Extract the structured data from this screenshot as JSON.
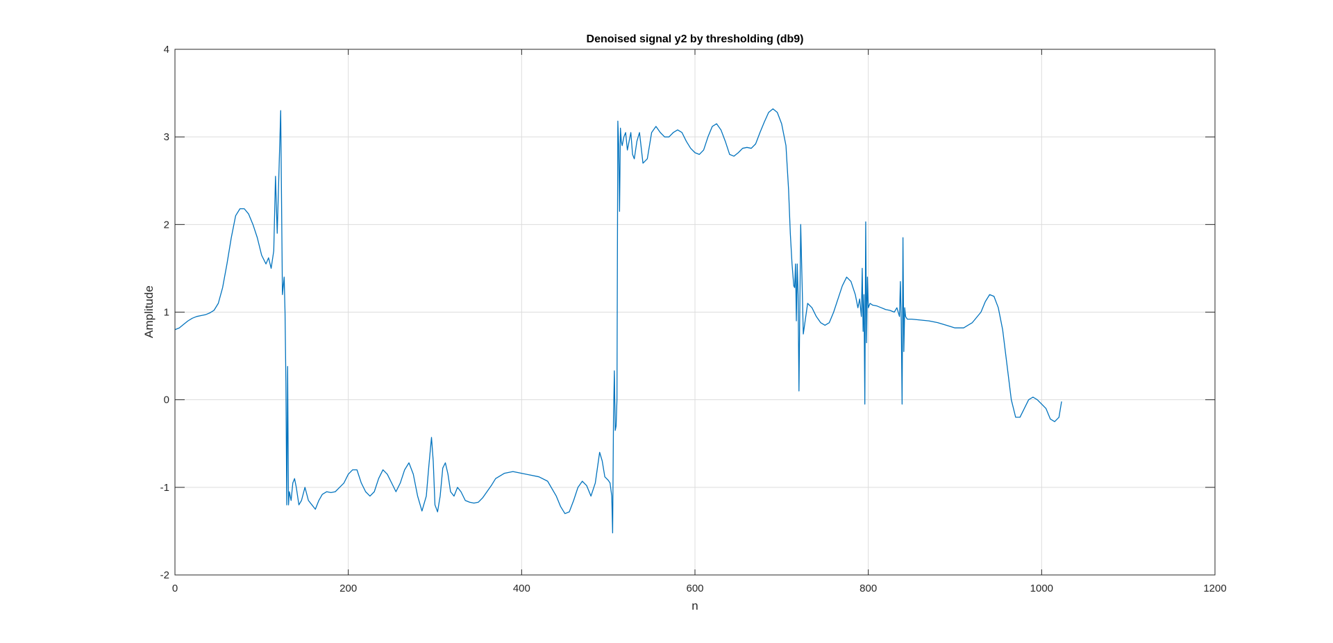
{
  "chart_data": {
    "type": "line",
    "title": "Denoised signal y2 by thresholding (db9)",
    "xlabel": "n",
    "ylabel": "Amplitude",
    "xlim": [
      0,
      1200
    ],
    "ylim": [
      -2,
      4
    ],
    "xticks": [
      0,
      200,
      400,
      600,
      800,
      1000,
      1200
    ],
    "yticks": [
      -2,
      -1,
      0,
      1,
      2,
      3,
      4
    ],
    "xtick_labels": [
      "0",
      "200",
      "400",
      "600",
      "800",
      "1000",
      "1200"
    ],
    "ytick_labels": [
      "-2",
      "-1",
      "0",
      "1",
      "2",
      "3",
      "4"
    ],
    "grid": true,
    "colors": {
      "line": "#0072BD",
      "grid": "#dcdcdc",
      "axes": "#262626"
    },
    "series": [
      {
        "x": [
          0,
          5,
          10,
          15,
          20,
          25,
          30,
          35,
          40,
          45,
          50,
          55,
          60,
          65,
          70,
          75,
          80,
          85,
          90,
          95,
          100,
          105,
          108,
          111,
          114,
          116,
          118,
          120,
          122,
          124,
          126,
          127,
          128,
          129,
          130,
          131,
          132,
          134,
          136,
          138,
          140,
          143,
          146,
          150,
          154,
          158,
          162,
          166,
          170,
          175,
          180,
          185,
          190,
          195,
          200,
          205,
          210,
          215,
          220,
          225,
          230,
          235,
          240,
          245,
          250,
          255,
          260,
          265,
          270,
          275,
          280,
          285,
          290,
          293,
          296,
          298,
          300,
          303,
          306,
          309,
          312,
          315,
          318,
          322,
          326,
          330,
          335,
          340,
          345,
          350,
          355,
          360,
          365,
          370,
          380,
          390,
          400,
          410,
          420,
          430,
          440,
          445,
          450,
          455,
          460,
          465,
          470,
          475,
          480,
          485,
          490,
          493,
          496,
          500,
          502,
          504,
          505,
          506,
          507,
          508,
          509,
          510,
          511,
          512,
          513,
          514,
          515,
          516,
          518,
          520,
          522,
          524,
          526,
          528,
          530,
          533,
          536,
          540,
          545,
          550,
          555,
          560,
          565,
          570,
          575,
          580,
          585,
          590,
          595,
          600,
          605,
          610,
          615,
          620,
          625,
          630,
          635,
          640,
          645,
          650,
          655,
          660,
          665,
          670,
          675,
          680,
          685,
          690,
          695,
          700,
          705,
          708,
          710,
          712,
          714,
          715,
          716,
          717,
          718,
          719,
          720,
          722,
          725,
          730,
          735,
          740,
          745,
          750,
          755,
          760,
          765,
          770,
          775,
          780,
          785,
          788,
          790,
          792,
          793,
          794,
          795,
          796,
          797,
          798,
          799,
          800,
          802,
          805,
          810,
          815,
          820,
          825,
          830,
          833,
          836,
          837,
          838,
          839,
          840,
          841,
          842,
          843,
          845,
          850,
          860,
          870,
          880,
          890,
          900,
          910,
          920,
          930,
          935,
          940,
          945,
          950,
          955,
          960,
          965,
          970,
          975,
          980,
          985,
          990,
          995,
          1000,
          1005,
          1010,
          1015,
          1020,
          1023
        ],
        "y": [
          0.8,
          0.82,
          0.86,
          0.9,
          0.93,
          0.95,
          0.96,
          0.97,
          0.99,
          1.02,
          1.1,
          1.28,
          1.55,
          1.85,
          2.1,
          2.18,
          2.18,
          2.12,
          2.0,
          1.85,
          1.65,
          1.55,
          1.62,
          1.5,
          1.7,
          2.55,
          1.9,
          2.6,
          3.3,
          1.2,
          1.4,
          1.0,
          0.2,
          -1.2,
          0.38,
          -1.2,
          -1.05,
          -1.15,
          -0.95,
          -0.9,
          -1.0,
          -1.2,
          -1.15,
          -1.0,
          -1.15,
          -1.2,
          -1.25,
          -1.15,
          -1.08,
          -1.05,
          -1.06,
          -1.05,
          -1.0,
          -0.95,
          -0.85,
          -0.8,
          -0.8,
          -0.95,
          -1.05,
          -1.1,
          -1.05,
          -0.9,
          -0.8,
          -0.85,
          -0.95,
          -1.05,
          -0.95,
          -0.8,
          -0.72,
          -0.85,
          -1.1,
          -1.27,
          -1.1,
          -0.75,
          -0.43,
          -0.7,
          -1.2,
          -1.28,
          -1.1,
          -0.78,
          -0.72,
          -0.85,
          -1.05,
          -1.1,
          -1.0,
          -1.05,
          -1.15,
          -1.17,
          -1.18,
          -1.17,
          -1.12,
          -1.05,
          -0.98,
          -0.9,
          -0.84,
          -0.82,
          -0.84,
          -0.86,
          -0.88,
          -0.93,
          -1.1,
          -1.22,
          -1.3,
          -1.28,
          -1.15,
          -1.0,
          -0.93,
          -0.98,
          -1.1,
          -0.95,
          -0.6,
          -0.7,
          -0.88,
          -0.92,
          -0.95,
          -1.1,
          -1.52,
          -0.2,
          0.33,
          -0.35,
          -0.3,
          0.0,
          3.18,
          2.9,
          2.15,
          3.1,
          2.95,
          2.9,
          3.0,
          3.05,
          2.85,
          2.95,
          3.05,
          2.8,
          2.75,
          2.95,
          3.05,
          2.7,
          2.75,
          3.05,
          3.12,
          3.05,
          3.0,
          3.0,
          3.05,
          3.08,
          3.05,
          2.95,
          2.87,
          2.82,
          2.8,
          2.85,
          3.0,
          3.12,
          3.15,
          3.08,
          2.95,
          2.8,
          2.78,
          2.82,
          2.87,
          2.88,
          2.87,
          2.92,
          3.05,
          3.17,
          3.28,
          3.32,
          3.28,
          3.15,
          2.9,
          2.4,
          1.9,
          1.55,
          1.3,
          1.28,
          1.55,
          0.9,
          1.55,
          1.2,
          0.1,
          2.0,
          0.75,
          1.1,
          1.05,
          0.95,
          0.88,
          0.85,
          0.88,
          1.0,
          1.15,
          1.3,
          1.4,
          1.35,
          1.2,
          1.05,
          1.15,
          0.95,
          1.5,
          0.78,
          1.2,
          -0.05,
          2.03,
          0.65,
          1.4,
          1.05,
          1.1,
          1.08,
          1.07,
          1.05,
          1.03,
          1.02,
          1.0,
          1.05,
          0.95,
          1.35,
          0.9,
          -0.05,
          1.85,
          0.55,
          1.05,
          0.95,
          0.92,
          0.92,
          0.91,
          0.9,
          0.88,
          0.85,
          0.82,
          0.82,
          0.88,
          1.0,
          1.12,
          1.2,
          1.18,
          1.05,
          0.8,
          0.4,
          0.0,
          -0.2,
          -0.2,
          -0.1,
          0.0,
          0.03,
          0.0,
          -0.05,
          -0.1,
          -0.22,
          -0.25,
          -0.2,
          -0.02
        ]
      }
    ]
  }
}
